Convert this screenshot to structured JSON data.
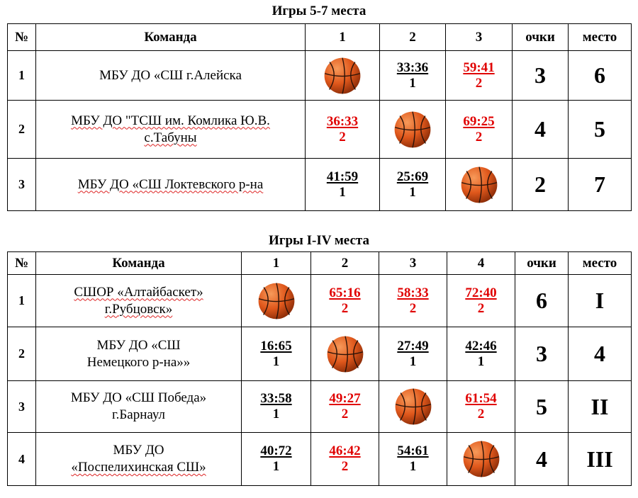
{
  "table1": {
    "title": "Игры 5-7 места",
    "headers": [
      "№",
      "Команда",
      "1",
      "2",
      "3",
      "очки",
      "место"
    ],
    "rows": [
      {
        "num": "1",
        "team_lines": [
          "МБУ ДО «СШ г.Алейска"
        ],
        "cells": [
          {
            "type": "ball",
            "icon": "basketball-icon"
          },
          {
            "type": "score",
            "result": "loss",
            "score": "33:36",
            "points": "1"
          },
          {
            "type": "score",
            "result": "win",
            "score": "59:41",
            "points": "2"
          }
        ],
        "ochki": "3",
        "mesto": "6"
      },
      {
        "num": "2",
        "team_lines": [
          "МБУ ДО \"ТСШ им. Комлика Ю.В.",
          "с.Табуны"
        ],
        "cells": [
          {
            "type": "score",
            "result": "win",
            "score": "36:33",
            "points": "2"
          },
          {
            "type": "ball",
            "icon": "basketball-icon"
          },
          {
            "type": "score",
            "result": "win",
            "score": "69:25",
            "points": "2"
          }
        ],
        "ochki": "4",
        "mesto": "5"
      },
      {
        "num": "3",
        "team_lines": [
          "МБУ ДО «СШ Локтевского р-на"
        ],
        "cells": [
          {
            "type": "score",
            "result": "loss",
            "score": "41:59",
            "points": "1"
          },
          {
            "type": "score",
            "result": "loss",
            "score": "25:69",
            "points": "1"
          },
          {
            "type": "ball",
            "icon": "basketball-icon"
          }
        ],
        "ochki": "2",
        "mesto": "7"
      }
    ]
  },
  "table2": {
    "title": "Игры I-IV места",
    "headers": [
      "№",
      "Команда",
      "1",
      "2",
      "3",
      "4",
      "очки",
      "место"
    ],
    "rows": [
      {
        "num": "1",
        "team_lines": [
          "СШОР «Алтайбаскет»",
          "г.Рубцовск»"
        ],
        "cells": [
          {
            "type": "ball",
            "icon": "basketball-icon"
          },
          {
            "type": "score",
            "result": "win",
            "score": "65:16",
            "points": "2"
          },
          {
            "type": "score",
            "result": "win",
            "score": "58:33",
            "points": "2"
          },
          {
            "type": "score",
            "result": "win",
            "score": "72:40",
            "points": "2"
          }
        ],
        "ochki": "6",
        "mesto": "I"
      },
      {
        "num": "2",
        "team_lines": [
          "МБУ ДО «СШ",
          "Немецкого р-на»»"
        ],
        "cells": [
          {
            "type": "score",
            "result": "loss",
            "score": "16:65",
            "points": "1"
          },
          {
            "type": "ball",
            "icon": "basketball-icon"
          },
          {
            "type": "score",
            "result": "loss",
            "score": "27:49",
            "points": "1"
          },
          {
            "type": "score",
            "result": "loss",
            "score": "42:46",
            "points": "1"
          }
        ],
        "ochki": "3",
        "mesto": "4"
      },
      {
        "num": "3",
        "team_lines": [
          "МБУ ДО «СШ Победа»",
          "г.Барнаул"
        ],
        "cells": [
          {
            "type": "score",
            "result": "loss",
            "score": "33:58",
            "points": "1"
          },
          {
            "type": "score",
            "result": "win",
            "score": "49:27",
            "points": "2"
          },
          {
            "type": "ball",
            "icon": "basketball-icon"
          },
          {
            "type": "score",
            "result": "win",
            "score": "61:54",
            "points": "2"
          }
        ],
        "ochki": "5",
        "mesto": "II"
      },
      {
        "num": "4",
        "team_lines": [
          "МБУ ДО",
          "«Поспелихинская СШ»"
        ],
        "cells": [
          {
            "type": "score",
            "result": "loss",
            "score": "40:72",
            "points": "1"
          },
          {
            "type": "score",
            "result": "win",
            "score": "46:42",
            "points": "2"
          },
          {
            "type": "score",
            "result": "loss",
            "score": "54:61",
            "points": "1"
          },
          {
            "type": "ball",
            "icon": "basketball-icon"
          }
        ],
        "ochki": "4",
        "mesto": "III"
      }
    ]
  },
  "colors": {
    "win": "#e00000",
    "loss": "#000000",
    "ball": "#e0581c"
  }
}
